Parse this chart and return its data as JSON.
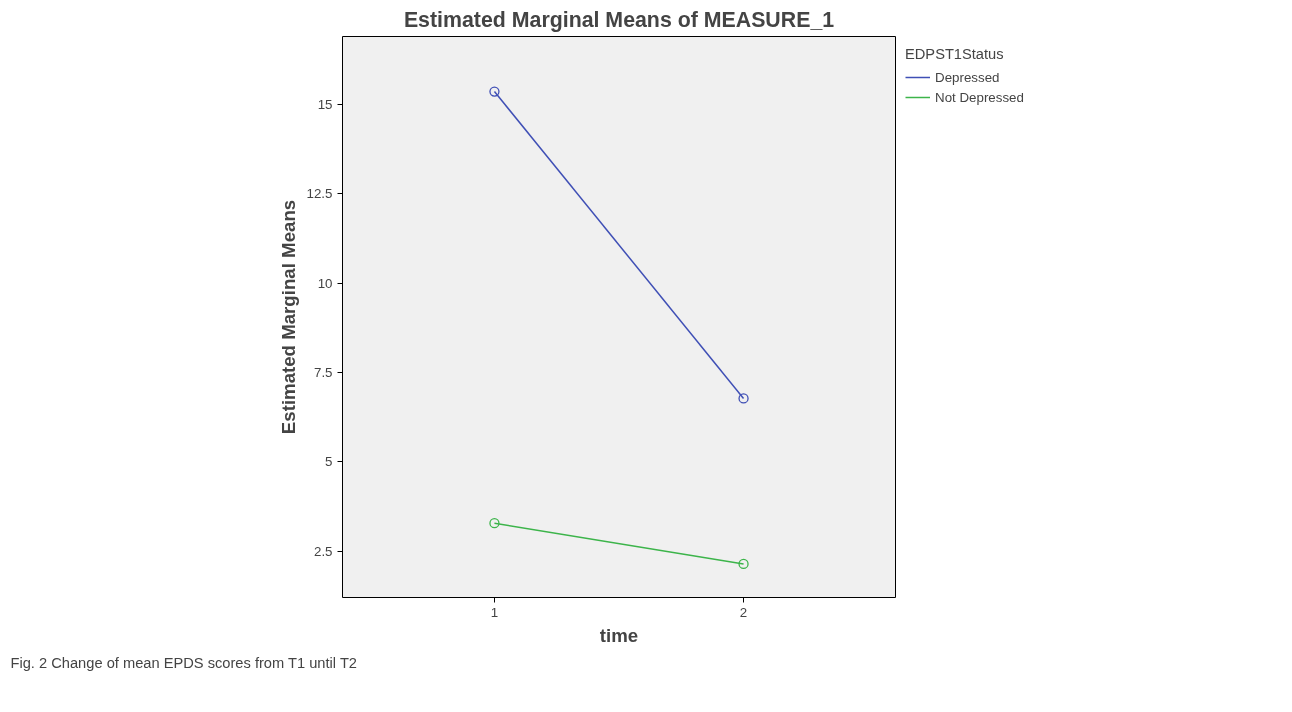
{
  "chart_data": {
    "type": "line",
    "title": "Estimated Marginal Means of MEASURE_1",
    "xlabel": "time",
    "ylabel": "Estimated Marginal Means",
    "legend_title": "EDPST1Status",
    "x": [
      1,
      2
    ],
    "series": [
      {
        "name": "Depressed",
        "color": "#3f4fb5",
        "values": [
          15.36,
          6.77
        ]
      },
      {
        "name": "Not Depressed",
        "color": "#3cb44a",
        "values": [
          3.28,
          2.14
        ]
      }
    ],
    "xlim": [
      0.39,
      2.61
    ],
    "ylim": [
      1.2,
      16.9
    ],
    "xticks": [
      1,
      2
    ],
    "yticks": [
      2.5,
      5,
      7.5,
      10,
      12.5,
      15
    ],
    "marker": "circle",
    "grid": false,
    "legend": "top right",
    "annotations": [
      "Fig. 2 Change of mean EPDS scores from T1 until T2"
    ]
  }
}
